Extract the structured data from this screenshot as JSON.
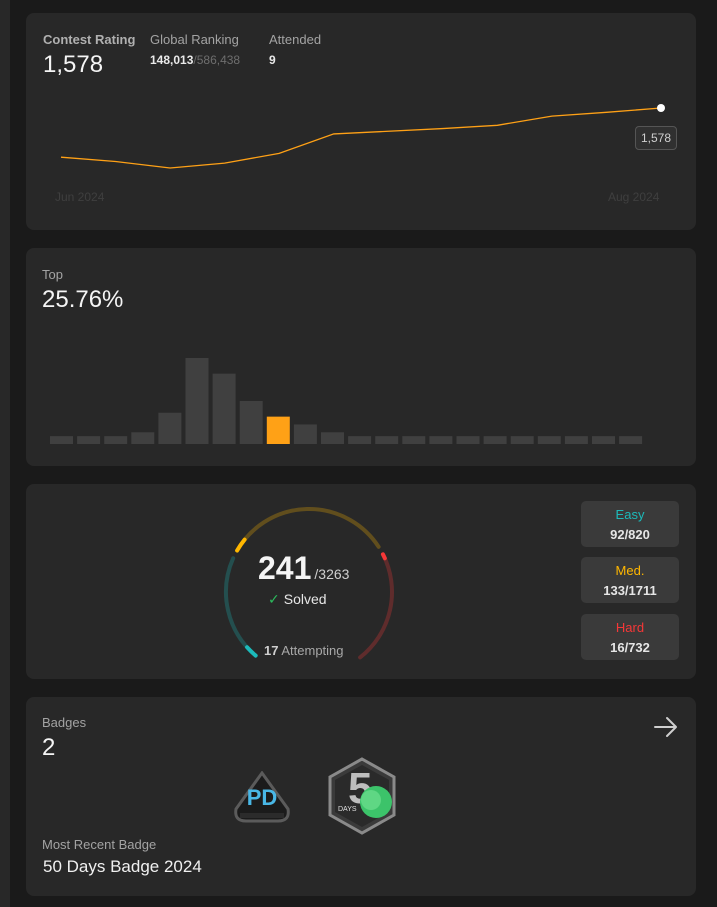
{
  "contest": {
    "rating_label": "Contest Rating",
    "rating_value": "1,578",
    "ranking_label": "Global Ranking",
    "ranking_value": "148,013",
    "ranking_total": "/586,438",
    "attended_label": "Attended",
    "attended_value": "9",
    "x_start": "Jun 2024",
    "x_end": "Aug 2024",
    "tooltip": "1,578",
    "line_color": "#ffa116"
  },
  "chart_data": {
    "type": "line",
    "x_labels": [
      "Jun 2024",
      "Aug 2024"
    ],
    "series": [
      {
        "values": [
          1487,
          1479,
          1467,
          1476,
          1494,
          1530,
          1535,
          1540,
          1546,
          1563,
          1570,
          1578
        ]
      }
    ]
  },
  "top": {
    "label": "Top",
    "value": "25.76%",
    "bars": [
      2,
      2,
      2,
      3,
      8,
      22,
      18,
      11,
      7,
      5,
      3,
      2,
      2,
      2,
      2,
      2,
      2,
      2,
      2,
      2,
      2,
      2
    ],
    "highlight_index": 8,
    "highlight_color": "#ffa116",
    "bar_color": "#404040"
  },
  "solved": {
    "count": "241",
    "total": "/3263",
    "check_icon": "check-icon",
    "solved_label": "Solved",
    "attempting_count": "17",
    "attempting_label": "Attempting",
    "easy_label": "Easy",
    "easy_value": "92/820",
    "easy_color": "#1cbaba",
    "med_label": "Med.",
    "med_value": "133/1711",
    "med_color": "#ffb700",
    "hard_label": "Hard",
    "hard_value": "16/732",
    "hard_color": "#f63737",
    "easy_fraction": 0.112,
    "med_fraction": 0.078,
    "hard_fraction": 0.022
  },
  "badges": {
    "label": "Badges",
    "count": "2",
    "arrow_icon": "arrow-right-icon",
    "badge1_text": "PD",
    "badge2_text": "DAYS",
    "recent_label": "Most Recent Badge",
    "recent_value": "50 Days Badge 2024"
  }
}
